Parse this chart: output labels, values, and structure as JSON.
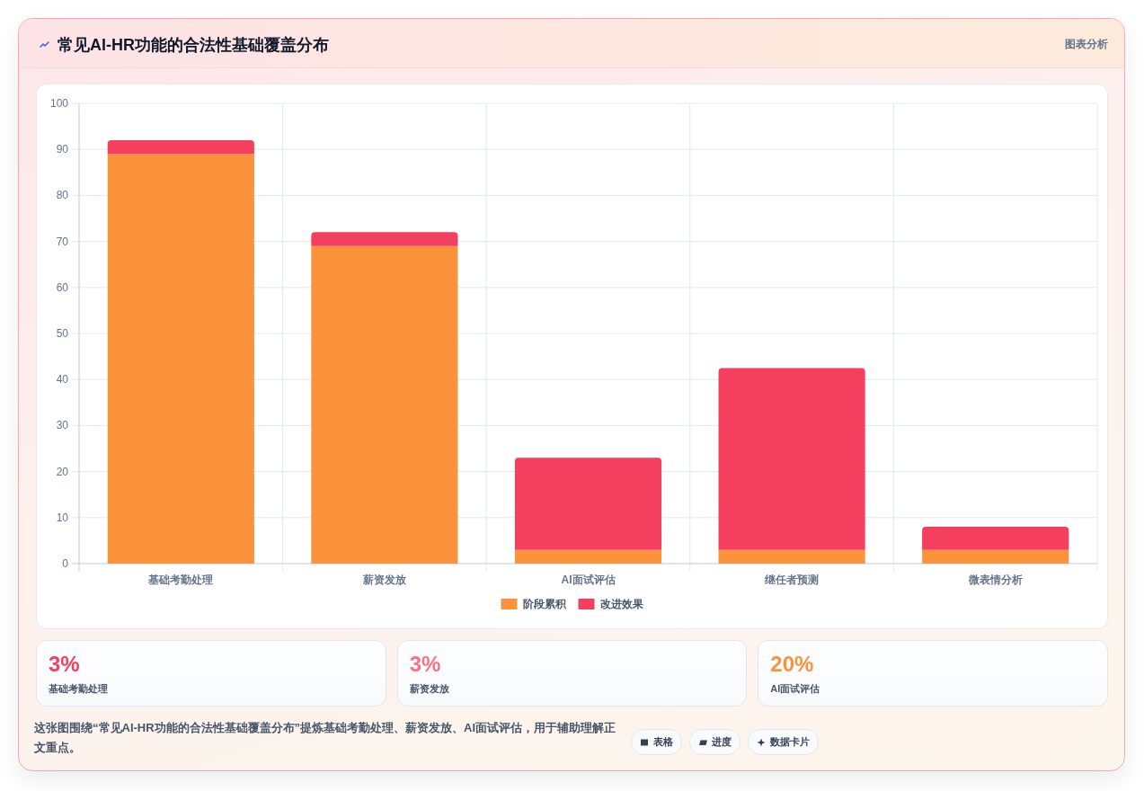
{
  "chart_data": [
    {
      "type": "bar",
      "title": "常见AI-HR功能的合法性基础覆盖分布",
      "stacked": true,
      "categories": [
        "基础考勤处理",
        "薪资发放",
        "AI面试评估",
        "继任者预测",
        "微表情分析"
      ],
      "series": [
        {
          "name": "阶段累积",
          "color": "#fb923c",
          "values": [
            89,
            69,
            3,
            3,
            3
          ]
        },
        {
          "name": "改进效果",
          "color": "#f43f5e",
          "values": [
            3,
            3,
            20,
            39.5,
            5
          ]
        }
      ],
      "ylim": [
        0,
        100
      ],
      "yticks": [
        0,
        10,
        20,
        30,
        40,
        50,
        60,
        70,
        80,
        90,
        100
      ],
      "grid": true,
      "legend": "bottom",
      "annotations": [
        "图表分析",
        "这张图围绕“常见AI-HR功能的合法性基础覆盖分布”提炼基础考勤处理、薪资发放、AI面试评估，用于辅助理解正文重点。",
        "表格",
        "进度",
        "数据卡片"
      ]
    },
    {
      "type": "other",
      "categories": [
        "基础考勤处理",
        "薪资发放",
        "AI面试评估"
      ],
      "value_labels": [
        "3%",
        "3%",
        "20%"
      ]
    }
  ]
}
